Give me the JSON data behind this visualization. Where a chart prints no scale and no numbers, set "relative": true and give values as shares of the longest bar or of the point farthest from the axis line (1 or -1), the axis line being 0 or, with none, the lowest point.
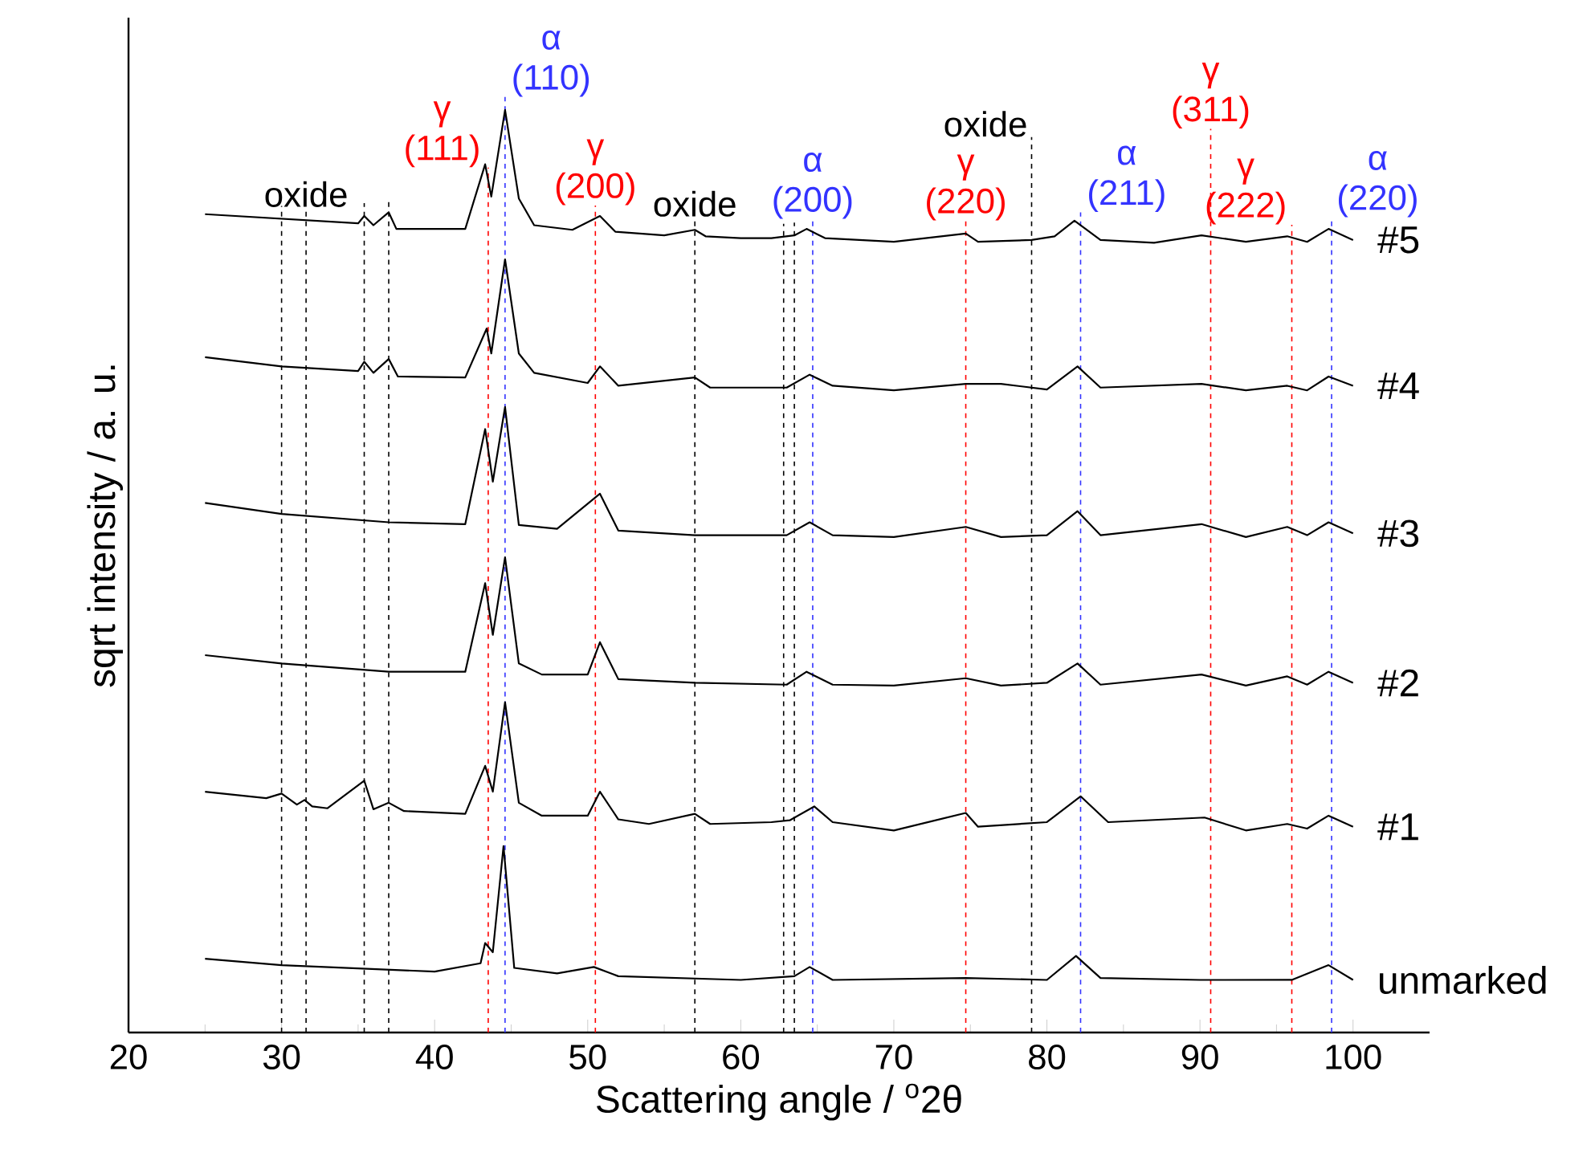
{
  "chart_data": {
    "type": "line",
    "relative": true,
    "xlabel": "Scattering angle / $^{o}$2θ",
    "ylabel": "sqrt intensity / a. u.",
    "xlim": [
      20,
      105
    ],
    "xticks": [
      20,
      30,
      40,
      50,
      60,
      70,
      80,
      90,
      100
    ],
    "series": [
      {
        "name": "#5",
        "color": "#000000",
        "x": [
          25,
          30,
          35,
          35.4,
          36,
          37,
          37.5,
          42,
          43.3,
          43.7,
          44.6,
          45.5,
          46.5,
          49,
          50.8,
          51.8,
          55,
          57,
          57.7,
          60,
          62,
          63.5,
          64.3,
          65.5,
          70,
          74.7,
          75.5,
          79,
          80.5,
          81.8,
          83.5,
          87,
          90.1,
          93,
          95.7,
          97,
          98.4,
          100
        ],
        "values": [
          0.887,
          0.882,
          0.877,
          0.885,
          0.875,
          0.889,
          0.871,
          0.871,
          0.941,
          0.906,
          1,
          0.904,
          0.875,
          0.87,
          0.885,
          0.868,
          0.864,
          0.87,
          0.863,
          0.861,
          0.861,
          0.864,
          0.871,
          0.861,
          0.857,
          0.866,
          0.857,
          0.859,
          0.863,
          0.88,
          0.859,
          0.856,
          0.864,
          0.857,
          0.863,
          0.857,
          0.871,
          0.859
        ]
      },
      {
        "name": "#4",
        "color": "#000000",
        "x": [
          25,
          30,
          35,
          35.4,
          36,
          37,
          37.6,
          42,
          43.4,
          43.7,
          44.6,
          45.5,
          46.5,
          50,
          50.8,
          52,
          57,
          58,
          63,
          64.5,
          66,
          70,
          74.7,
          77,
          80,
          82,
          83.5,
          90.1,
          93,
          95.7,
          97,
          98.4,
          100
        ],
        "values": [
          0.732,
          0.722,
          0.717,
          0.727,
          0.715,
          0.73,
          0.711,
          0.71,
          0.763,
          0.736,
          0.838,
          0.736,
          0.715,
          0.704,
          0.722,
          0.701,
          0.71,
          0.699,
          0.699,
          0.713,
          0.701,
          0.696,
          0.703,
          0.703,
          0.697,
          0.722,
          0.699,
          0.703,
          0.696,
          0.701,
          0.696,
          0.711,
          0.701
        ]
      },
      {
        "name": "#3",
        "color": "#000000",
        "x": [
          25,
          30,
          37,
          42,
          43.3,
          43.8,
          44.6,
          45.5,
          48,
          50.8,
          52,
          57,
          63,
          64.5,
          66,
          70,
          74.7,
          77,
          80,
          82,
          83.5,
          90.1,
          93,
          95.7,
          97,
          98.4,
          100
        ],
        "values": [
          0.574,
          0.562,
          0.553,
          0.551,
          0.654,
          0.597,
          0.678,
          0.55,
          0.546,
          0.584,
          0.544,
          0.539,
          0.539,
          0.553,
          0.539,
          0.537,
          0.548,
          0.537,
          0.539,
          0.565,
          0.539,
          0.551,
          0.537,
          0.548,
          0.539,
          0.553,
          0.541
        ]
      },
      {
        "name": "#2",
        "color": "#000000",
        "x": [
          25,
          30,
          37,
          42,
          43.3,
          43.8,
          44.6,
          45.5,
          47,
          50,
          50.8,
          52,
          57,
          63,
          64.3,
          66,
          70,
          74.7,
          77,
          80,
          82,
          83.5,
          90.1,
          93,
          95.7,
          97,
          98.4,
          100
        ],
        "values": [
          0.409,
          0.4,
          0.391,
          0.391,
          0.487,
          0.431,
          0.515,
          0.4,
          0.388,
          0.388,
          0.423,
          0.383,
          0.379,
          0.377,
          0.391,
          0.377,
          0.376,
          0.384,
          0.376,
          0.379,
          0.4,
          0.377,
          0.388,
          0.376,
          0.386,
          0.377,
          0.391,
          0.379
        ]
      },
      {
        "name": "#1",
        "color": "#000000",
        "x": [
          25,
          29,
          30,
          31,
          31.5,
          32,
          33,
          35.4,
          36,
          37,
          38,
          42,
          43.3,
          43.8,
          44.6,
          45.5,
          47,
          50,
          50.8,
          52,
          54,
          57,
          58,
          62,
          63.2,
          64.8,
          66,
          70,
          74.7,
          75.5,
          80,
          82.2,
          84,
          90.3,
          93,
          95.7,
          97,
          98.4,
          100
        ],
        "values": [
          0.261,
          0.254,
          0.259,
          0.247,
          0.252,
          0.245,
          0.243,
          0.273,
          0.242,
          0.249,
          0.24,
          0.237,
          0.289,
          0.261,
          0.358,
          0.249,
          0.235,
          0.235,
          0.261,
          0.231,
          0.226,
          0.237,
          0.226,
          0.228,
          0.23,
          0.245,
          0.228,
          0.219,
          0.238,
          0.223,
          0.228,
          0.256,
          0.228,
          0.233,
          0.219,
          0.226,
          0.221,
          0.235,
          0.223
        ]
      },
      {
        "name": "unmarked",
        "color": "#000000",
        "x": [
          25,
          30,
          40,
          43,
          43.3,
          43.8,
          44.5,
          45.2,
          48,
          50.4,
          52,
          60,
          63.5,
          64.5,
          66,
          74.7,
          80,
          81.9,
          83.5,
          90,
          96,
          98.4,
          100
        ],
        "values": [
          0.08,
          0.073,
          0.066,
          0.075,
          0.097,
          0.087,
          0.202,
          0.07,
          0.064,
          0.071,
          0.061,
          0.057,
          0.061,
          0.071,
          0.057,
          0.059,
          0.057,
          0.083,
          0.059,
          0.057,
          0.057,
          0.073,
          0.057
        ]
      }
    ],
    "ref_lines": [
      {
        "axis": "x",
        "value": 30,
        "color": "#000000",
        "line_style": "dashed"
      },
      {
        "axis": "x",
        "value": 31.6,
        "color": "#000000",
        "line_style": "dashed",
        "label": "oxide"
      },
      {
        "axis": "x",
        "value": 35.4,
        "color": "#000000",
        "line_style": "dashed"
      },
      {
        "axis": "x",
        "value": 37,
        "color": "#000000",
        "line_style": "dashed"
      },
      {
        "axis": "x",
        "value": 57,
        "color": "#000000",
        "line_style": "dashed",
        "label": "oxide"
      },
      {
        "axis": "x",
        "value": 62.8,
        "color": "#000000",
        "line_style": "dashed"
      },
      {
        "axis": "x",
        "value": 63.5,
        "color": "#000000",
        "line_style": "dashed"
      },
      {
        "axis": "x",
        "value": 79,
        "color": "#000000",
        "line_style": "dashed",
        "label": "oxide"
      },
      {
        "axis": "x",
        "value": 43.5,
        "color": "#ff0000",
        "line_style": "dashed",
        "label": "γ (111)"
      },
      {
        "axis": "x",
        "value": 50.5,
        "color": "#ff0000",
        "line_style": "dashed",
        "label": "γ (200)"
      },
      {
        "axis": "x",
        "value": 74.7,
        "color": "#ff0000",
        "line_style": "dashed",
        "label": "γ (220)"
      },
      {
        "axis": "x",
        "value": 90.7,
        "color": "#ff0000",
        "line_style": "dashed",
        "label": "γ (311)"
      },
      {
        "axis": "x",
        "value": 96.0,
        "color": "#ff0000",
        "line_style": "dashed",
        "label": "γ (222)"
      },
      {
        "axis": "x",
        "value": 44.6,
        "color": "#3333ff",
        "line_style": "dashed",
        "label": "α (110)"
      },
      {
        "axis": "x",
        "value": 64.7,
        "color": "#3333ff",
        "line_style": "dashed",
        "label": "α (200)"
      },
      {
        "axis": "x",
        "value": 82.2,
        "color": "#3333ff",
        "line_style": "dashed",
        "label": "α (211)"
      },
      {
        "axis": "x",
        "value": 98.6,
        "color": "#3333ff",
        "line_style": "dashed",
        "label": "α (220)"
      }
    ]
  }
}
